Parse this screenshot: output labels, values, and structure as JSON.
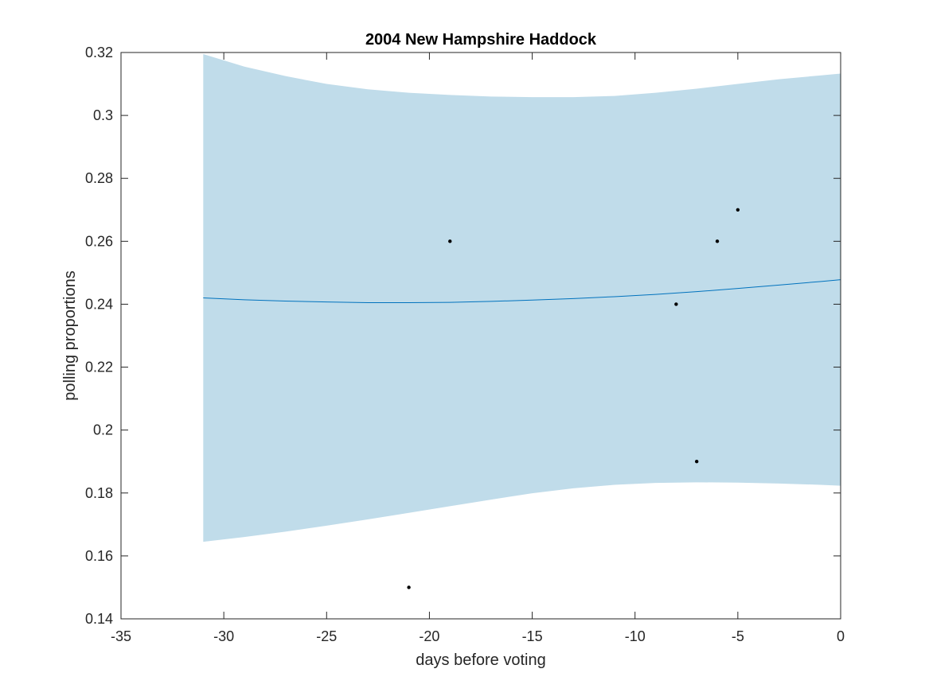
{
  "chart_data": {
    "type": "line",
    "title": "2004 New Hampshire Haddock",
    "xlabel": "days before voting",
    "ylabel": "polling proportions",
    "xlim": [
      -35,
      0
    ],
    "ylim": [
      0.14,
      0.32
    ],
    "xticks": [
      -35,
      -30,
      -25,
      -20,
      -15,
      -10,
      -5,
      0
    ],
    "xtick_labels": [
      "-35",
      "-30",
      "-25",
      "-20",
      "-15",
      "-10",
      "-5",
      "0"
    ],
    "yticks": [
      0.14,
      0.16,
      0.18,
      0.2,
      0.22,
      0.24,
      0.26,
      0.28,
      0.3,
      0.32
    ],
    "ytick_labels": [
      "0.14",
      "0.16",
      "0.18",
      "0.2",
      "0.22",
      "0.24",
      "0.26",
      "0.28",
      "0.3",
      "0.32"
    ],
    "grid": false,
    "colors": {
      "band": "#c0dcea",
      "line": "#0072bd",
      "points": "#000000",
      "axes": "#262626"
    },
    "series": [
      {
        "kind": "band",
        "x": [
          -31,
          -29,
          -27,
          -25,
          -23,
          -21,
          -19,
          -17,
          -15,
          -13,
          -11,
          -9,
          -7,
          -5,
          -3,
          -1,
          0
        ],
        "upper": [
          0.3195,
          0.3155,
          0.3125,
          0.31,
          0.3083,
          0.3072,
          0.3065,
          0.306,
          0.3058,
          0.3058,
          0.3062,
          0.3072,
          0.3085,
          0.31,
          0.3115,
          0.3127,
          0.3133
        ],
        "lower": [
          0.1645,
          0.166,
          0.1677,
          0.1696,
          0.1716,
          0.1737,
          0.1758,
          0.1779,
          0.1799,
          0.1815,
          0.1826,
          0.1832,
          0.1834,
          0.1833,
          0.183,
          0.1826,
          0.1823
        ]
      },
      {
        "kind": "line",
        "x": [
          -31,
          -29,
          -27,
          -25,
          -23,
          -21,
          -19,
          -17,
          -15,
          -13,
          -11,
          -9,
          -7,
          -5,
          -3,
          -1,
          0
        ],
        "y": [
          0.242,
          0.2414,
          0.241,
          0.2407,
          0.2405,
          0.2405,
          0.2406,
          0.2409,
          0.2413,
          0.2418,
          0.2424,
          0.2431,
          0.244,
          0.245,
          0.2461,
          0.2472,
          0.2478
        ]
      },
      {
        "kind": "scatter",
        "x": [
          -21,
          -19,
          -8,
          -7,
          -6,
          -5
        ],
        "y": [
          0.15,
          0.26,
          0.24,
          0.19,
          0.26,
          0.27
        ]
      }
    ]
  }
}
